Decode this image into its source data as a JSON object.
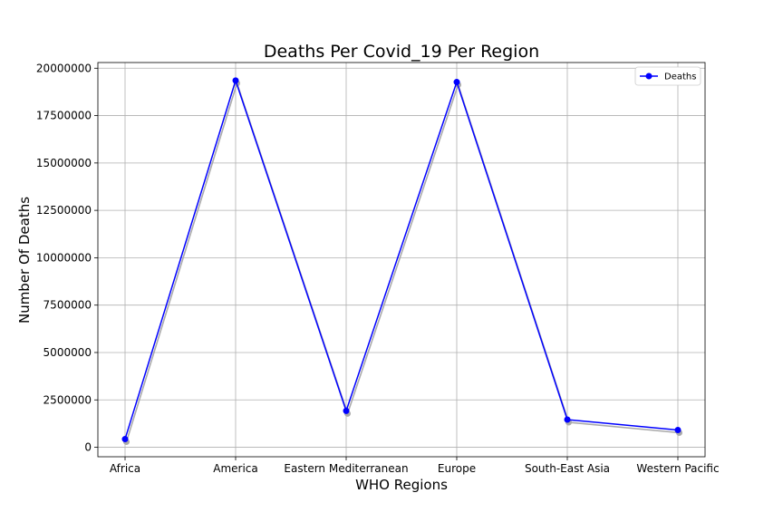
{
  "chart_data": {
    "type": "line",
    "title": "Deaths Per Covid_19 Per Region",
    "xlabel": "WHO Regions",
    "ylabel": "Number Of Deaths",
    "categories": [
      "Africa",
      "America",
      "Eastern Mediterranean",
      "Europe",
      "South-East Asia",
      "Western Pacific"
    ],
    "series": [
      {
        "name": "Deaths",
        "values": [
          430000,
          19350000,
          1920000,
          19270000,
          1460000,
          910000
        ],
        "color": "#0000ff"
      }
    ],
    "shadow_color": "#aaaaaa",
    "ylim": [
      -500000,
      20300000
    ],
    "yticks": [
      0,
      2500000,
      5000000,
      7500000,
      10000000,
      12500000,
      15000000,
      17500000,
      20000000
    ],
    "ytick_labels": [
      "0",
      "2500000",
      "5000000",
      "7500000",
      "10000000",
      "12500000",
      "15000000",
      "17500000",
      "20000000"
    ],
    "grid": true,
    "legend_position": "top-right"
  }
}
